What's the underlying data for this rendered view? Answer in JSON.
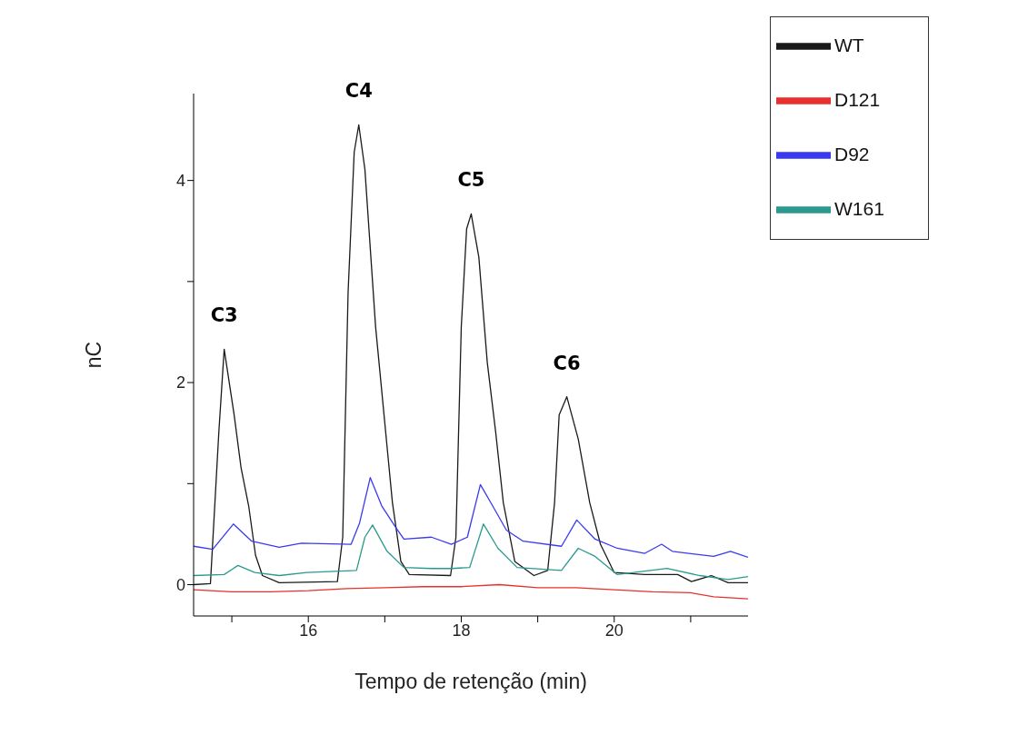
{
  "chart_data": {
    "type": "line",
    "xlabel": "Tempo de retenção (min)",
    "ylabel": "nC",
    "xlim": [
      14.5,
      21.75
    ],
    "ylim": [
      -0.31,
      4.86
    ],
    "xticks": [
      {
        "value": 15,
        "label": null
      },
      16,
      {
        "value": 17,
        "label": null
      },
      18,
      {
        "value": 19,
        "label": null
      },
      20,
      {
        "value": 21,
        "label": null
      }
    ],
    "yticks": [
      0,
      {
        "value": 1,
        "label": null
      },
      2,
      {
        "value": 3,
        "label": null
      },
      4
    ],
    "legend": "top right",
    "annotations": [
      {
        "text": "C3",
        "x": 14.9,
        "y": 2.33
      },
      {
        "text": "C4",
        "x": 16.66,
        "y": 4.55
      },
      {
        "text": "C5",
        "x": 18.13,
        "y": 3.67
      },
      {
        "text": "C6",
        "x": 19.38,
        "y": 1.86
      }
    ],
    "series": [
      {
        "name": "WT",
        "color": "#1a1a1a",
        "x": [
          14.5,
          14.72,
          14.83,
          14.9,
          15.03,
          15.12,
          15.22,
          15.31,
          15.4,
          15.62,
          16.38,
          16.45,
          16.52,
          16.6,
          16.66,
          16.74,
          16.88,
          16.99,
          17.1,
          17.21,
          17.32,
          17.86,
          17.93,
          18.0,
          18.07,
          18.13,
          18.23,
          18.34,
          18.45,
          18.55,
          18.7,
          18.95,
          19.13,
          19.22,
          19.28,
          19.38,
          19.53,
          19.68,
          19.82,
          20.0,
          20.4,
          20.83,
          21.01,
          21.27,
          21.49,
          21.75
        ],
        "values": [
          0.0,
          0.01,
          1.51,
          2.33,
          1.68,
          1.16,
          0.78,
          0.29,
          0.09,
          0.02,
          0.03,
          0.47,
          2.89,
          4.28,
          4.55,
          4.11,
          2.55,
          1.68,
          0.81,
          0.23,
          0.1,
          0.09,
          0.47,
          2.55,
          3.52,
          3.67,
          3.24,
          2.2,
          1.51,
          0.81,
          0.23,
          0.09,
          0.14,
          0.81,
          1.68,
          1.86,
          1.44,
          0.81,
          0.4,
          0.12,
          0.1,
          0.1,
          0.03,
          0.09,
          0.02,
          0.02
        ]
      },
      {
        "name": "D121",
        "color": "#e8302e",
        "x": [
          14.5,
          15.0,
          15.5,
          16.0,
          16.5,
          17.0,
          17.5,
          18.0,
          18.5,
          19.0,
          19.5,
          20.0,
          20.5,
          21.0,
          21.3,
          21.75
        ],
        "values": [
          -0.05,
          -0.07,
          -0.07,
          -0.06,
          -0.04,
          -0.03,
          -0.02,
          -0.02,
          0.0,
          -0.03,
          -0.03,
          -0.05,
          -0.07,
          -0.08,
          -0.12,
          -0.14
        ]
      },
      {
        "name": "D92",
        "color": "#3a3af0",
        "x": [
          14.5,
          14.75,
          15.02,
          15.26,
          15.62,
          15.91,
          16.56,
          16.67,
          16.81,
          16.96,
          17.14,
          17.25,
          17.61,
          17.87,
          18.08,
          18.25,
          18.41,
          18.59,
          18.81,
          19.31,
          19.51,
          19.75,
          20.04,
          20.4,
          20.62,
          20.76,
          21.3,
          21.52,
          21.75
        ],
        "values": [
          0.38,
          0.35,
          0.6,
          0.43,
          0.37,
          0.41,
          0.4,
          0.61,
          1.06,
          0.78,
          0.57,
          0.45,
          0.47,
          0.4,
          0.47,
          0.99,
          0.78,
          0.54,
          0.43,
          0.38,
          0.64,
          0.45,
          0.36,
          0.31,
          0.4,
          0.33,
          0.28,
          0.33,
          0.27
        ]
      },
      {
        "name": "W161",
        "color": "#2a9a8e",
        "x": [
          14.5,
          14.9,
          15.08,
          15.3,
          15.62,
          15.98,
          16.63,
          16.74,
          16.84,
          17.03,
          17.25,
          17.61,
          17.87,
          18.11,
          18.29,
          18.48,
          18.73,
          19.31,
          19.53,
          19.75,
          20.04,
          20.69,
          21.12,
          21.49,
          21.75
        ],
        "values": [
          0.09,
          0.1,
          0.19,
          0.12,
          0.09,
          0.12,
          0.14,
          0.47,
          0.59,
          0.33,
          0.17,
          0.16,
          0.16,
          0.17,
          0.6,
          0.36,
          0.17,
          0.14,
          0.36,
          0.28,
          0.1,
          0.16,
          0.09,
          0.05,
          0.08
        ]
      }
    ]
  }
}
